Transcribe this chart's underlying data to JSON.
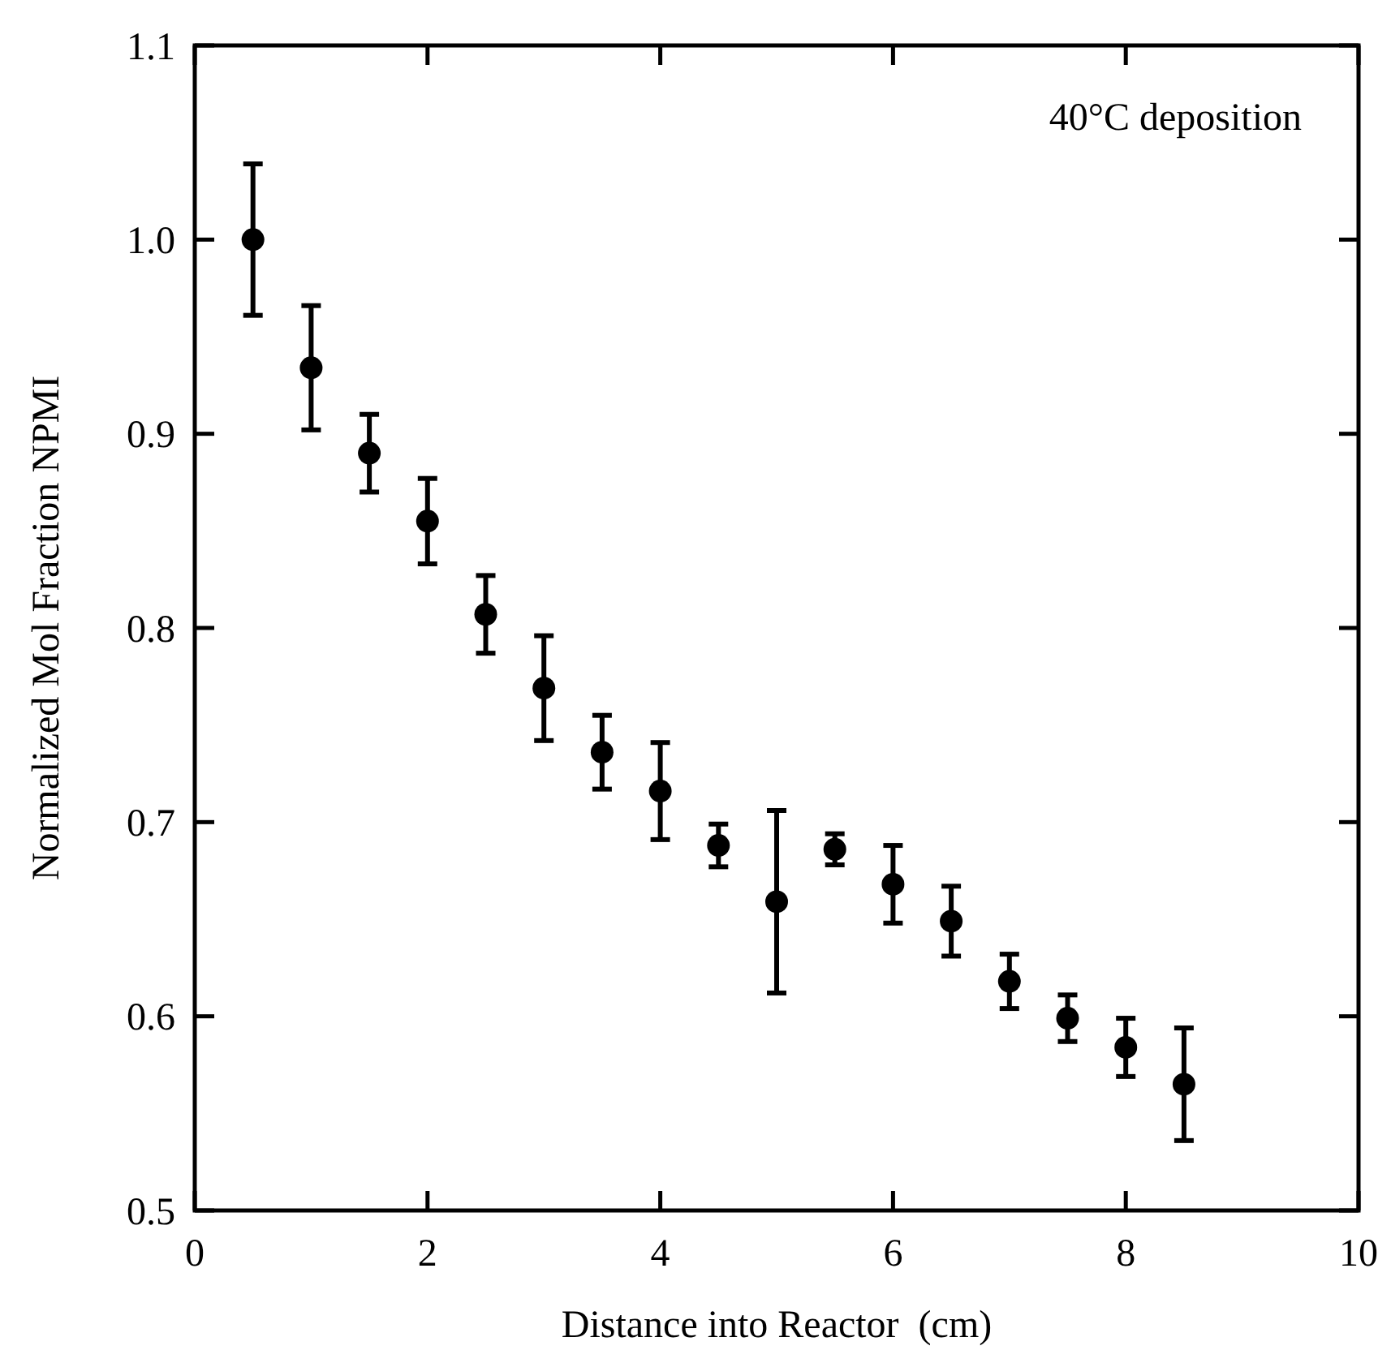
{
  "chart_data": {
    "type": "scatter",
    "xlabel": "Distance into Reactor  (cm)",
    "ylabel": "Normalized Mol Fraction NPMI",
    "annotations": [
      "40°C deposition"
    ],
    "x": [
      0.5,
      1,
      1.5,
      2,
      2.5,
      3,
      3.5,
      4,
      4.5,
      5,
      5.5,
      6,
      6.5,
      7,
      7.5,
      8,
      8.5
    ],
    "series": [
      {
        "color": "#000000",
        "values": [
          1.0,
          0.934,
          0.89,
          0.855,
          0.807,
          0.769,
          0.736,
          0.716,
          0.688,
          0.659,
          0.686,
          0.668,
          0.649,
          0.618,
          0.599,
          0.584,
          0.565
        ],
        "errors": [
          0.039,
          0.032,
          0.02,
          0.022,
          0.02,
          0.027,
          0.019,
          0.025,
          0.011,
          0.047,
          0.008,
          0.02,
          0.018,
          0.014,
          0.012,
          0.015,
          0.029
        ]
      }
    ],
    "marker": "circle",
    "grid": false,
    "xlim": [
      0,
      10
    ],
    "xticks": [
      0,
      2,
      4,
      6,
      8,
      10
    ],
    "ylim": [
      0.5,
      1.1
    ],
    "yticks": [
      {
        "value": 0.5,
        "label": "0.5"
      },
      {
        "value": 0.6,
        "label": "0.6"
      },
      {
        "value": 0.7,
        "label": "0.7"
      },
      {
        "value": 0.8,
        "label": "0.8"
      },
      {
        "value": 0.9,
        "label": "0.9"
      },
      {
        "value": 1.0,
        "label": "1.0"
      },
      {
        "value": 1.1,
        "label": "1.1"
      }
    ]
  }
}
